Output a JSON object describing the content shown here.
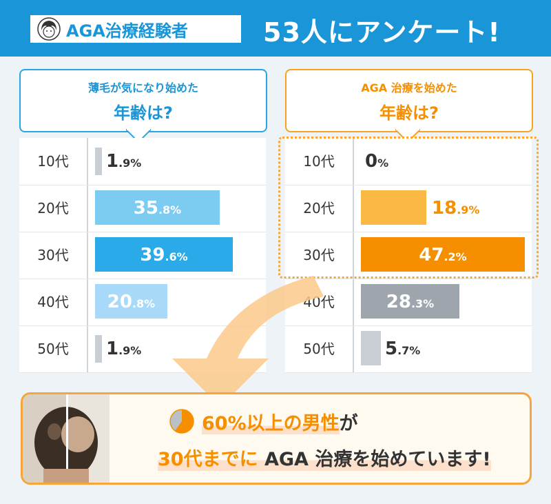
{
  "header": {
    "badge_text": "AGA治療経験者",
    "title": "53人にアンケート!"
  },
  "colors": {
    "header_blue": "#1a95d8",
    "orange": "#f58f00"
  },
  "chart_data": [
    {
      "type": "bar",
      "orientation": "horizontal",
      "title_line1": "薄毛が気になり始めた",
      "title_line2": "年齢は?",
      "categories": [
        "10代",
        "20代",
        "30代",
        "40代",
        "50代"
      ],
      "values": [
        1.9,
        35.8,
        39.6,
        20.8,
        1.9
      ],
      "labels_int": [
        "1",
        "35",
        "39",
        "20",
        "1"
      ],
      "labels_dec": [
        ".9%",
        ".8%",
        ".6%",
        ".8%",
        ".9%"
      ],
      "colors": [
        "#c8ced3",
        "#7ccbf1",
        "#2aaae8",
        "#a9d9f8",
        "#c8ced3"
      ],
      "xlim": [
        0,
        47.2
      ],
      "unit": "%"
    },
    {
      "type": "bar",
      "orientation": "horizontal",
      "title_line1": "AGA 治療を始めた",
      "title_line2": "年齢は?",
      "categories": [
        "10代",
        "20代",
        "30代",
        "40代",
        "50代"
      ],
      "values": [
        0,
        18.9,
        47.2,
        28.3,
        5.7
      ],
      "labels_int": [
        "0",
        "18",
        "47",
        "28",
        "5"
      ],
      "labels_dec": [
        "%",
        ".9%",
        ".2%",
        ".3%",
        ".7%"
      ],
      "colors": [
        "#c8ced3",
        "#f9b944",
        "#f58f00",
        "#9ea5ad",
        "#c8ced3"
      ],
      "xlim": [
        0,
        47.2
      ],
      "unit": "%"
    }
  ],
  "summary": {
    "line1_highlight": "60%以上の男性",
    "line1_tail": "が",
    "line2_prefix": "30代までに",
    "line2_rest": "AGA 治療を始めています!",
    "pie_value": 60
  }
}
